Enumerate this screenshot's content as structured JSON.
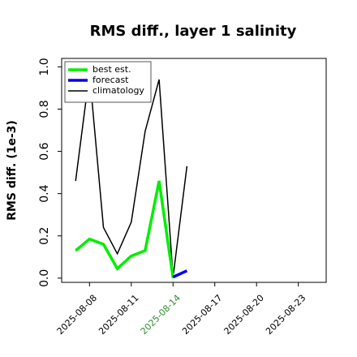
{
  "chart_data": {
    "type": "line",
    "title": "RMS diff., layer 1 salinity",
    "xlabel": "",
    "ylabel": "RMS diff. (1e-3)",
    "xlim": [
      "2025-08-06",
      "2025-08-25"
    ],
    "ylim": [
      -0.02,
      1.04
    ],
    "yticks": [
      0.0,
      0.2,
      0.4,
      0.6,
      0.8,
      1.0
    ],
    "ytick_labels": [
      "0.0",
      "0.2",
      "0.4",
      "0.6",
      "0.8",
      "1.0"
    ],
    "xticks": [
      "2025-08-08",
      "2025-08-11",
      "2025-08-14",
      "2025-08-17",
      "2025-08-20",
      "2025-08-23"
    ],
    "xtick_labels": [
      "2025-08-08",
      "2025-08-11",
      "2025-08-14",
      "2025-08-17",
      "2025-08-20",
      "2025-08-23"
    ],
    "highlight_xtick": "2025-08-14",
    "highlight_color": "#2e8b2e",
    "grid": false,
    "legend_position": "top-left",
    "series": [
      {
        "name": "best est.",
        "color": "#00ee00",
        "x": [
          "2025-08-07",
          "2025-08-08",
          "2025-08-09",
          "2025-08-10",
          "2025-08-11",
          "2025-08-12",
          "2025-08-13",
          "2025-08-14"
        ],
        "values": [
          0.13,
          0.185,
          0.16,
          0.045,
          0.105,
          0.13,
          0.46,
          0.0
        ]
      },
      {
        "name": "forecast",
        "color": "#0000ee",
        "x": [
          "2025-08-14",
          "2025-08-15"
        ],
        "values": [
          0.005,
          0.035
        ]
      },
      {
        "name": "climatology",
        "color": "#000000",
        "x": [
          "2025-08-07",
          "2025-08-08",
          "2025-08-09",
          "2025-08-10",
          "2025-08-11",
          "2025-08-12",
          "2025-08-13",
          "2025-08-14",
          "2025-08-15"
        ],
        "values": [
          0.46,
          0.97,
          0.24,
          0.115,
          0.265,
          0.695,
          0.94,
          0.005,
          0.53
        ]
      }
    ]
  }
}
